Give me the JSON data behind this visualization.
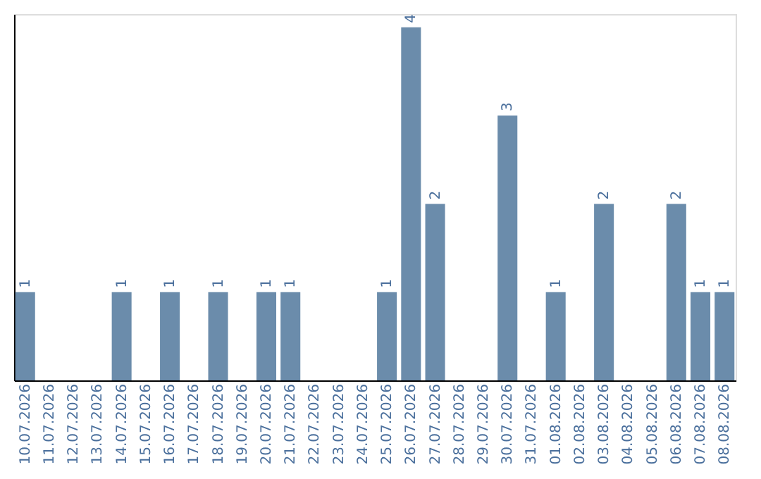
{
  "chart_data": {
    "type": "bar",
    "categories": [
      "10.07.2026",
      "11.07.2026",
      "12.07.2026",
      "13.07.2026",
      "14.07.2026",
      "15.07.2026",
      "16.07.2026",
      "17.07.2026",
      "18.07.2026",
      "19.07.2026",
      "20.07.2026",
      "21.07.2026",
      "22.07.2026",
      "23.07.2026",
      "24.07.2026",
      "25.07.2026",
      "26.07.2026",
      "27.07.2026",
      "28.07.2026",
      "29.07.2026",
      "30.07.2026",
      "31.07.2026",
      "01.08.2026",
      "02.08.2026",
      "03.08.2026",
      "04.08.2026",
      "05.08.2026",
      "06.08.2026",
      "07.08.2026",
      "08.08.2026"
    ],
    "values": [
      1,
      0,
      0,
      0,
      1,
      0,
      1,
      0,
      1,
      0,
      1,
      1,
      0,
      0,
      0,
      1,
      4,
      2,
      0,
      0,
      3,
      0,
      1,
      0,
      2,
      0,
      0,
      2,
      1,
      1
    ],
    "value_labels": [
      "1",
      null,
      null,
      null,
      "1",
      null,
      "1",
      null,
      "1",
      null,
      "1",
      "1",
      null,
      null,
      null,
      "1",
      "4",
      "2",
      null,
      null,
      "3",
      null,
      "1",
      null,
      "2",
      null,
      null,
      "2",
      "1",
      "1"
    ],
    "color": "#6b8cab",
    "ylim": [
      0,
      4.15
    ],
    "tick_labels": "x",
    "grid": false
  }
}
